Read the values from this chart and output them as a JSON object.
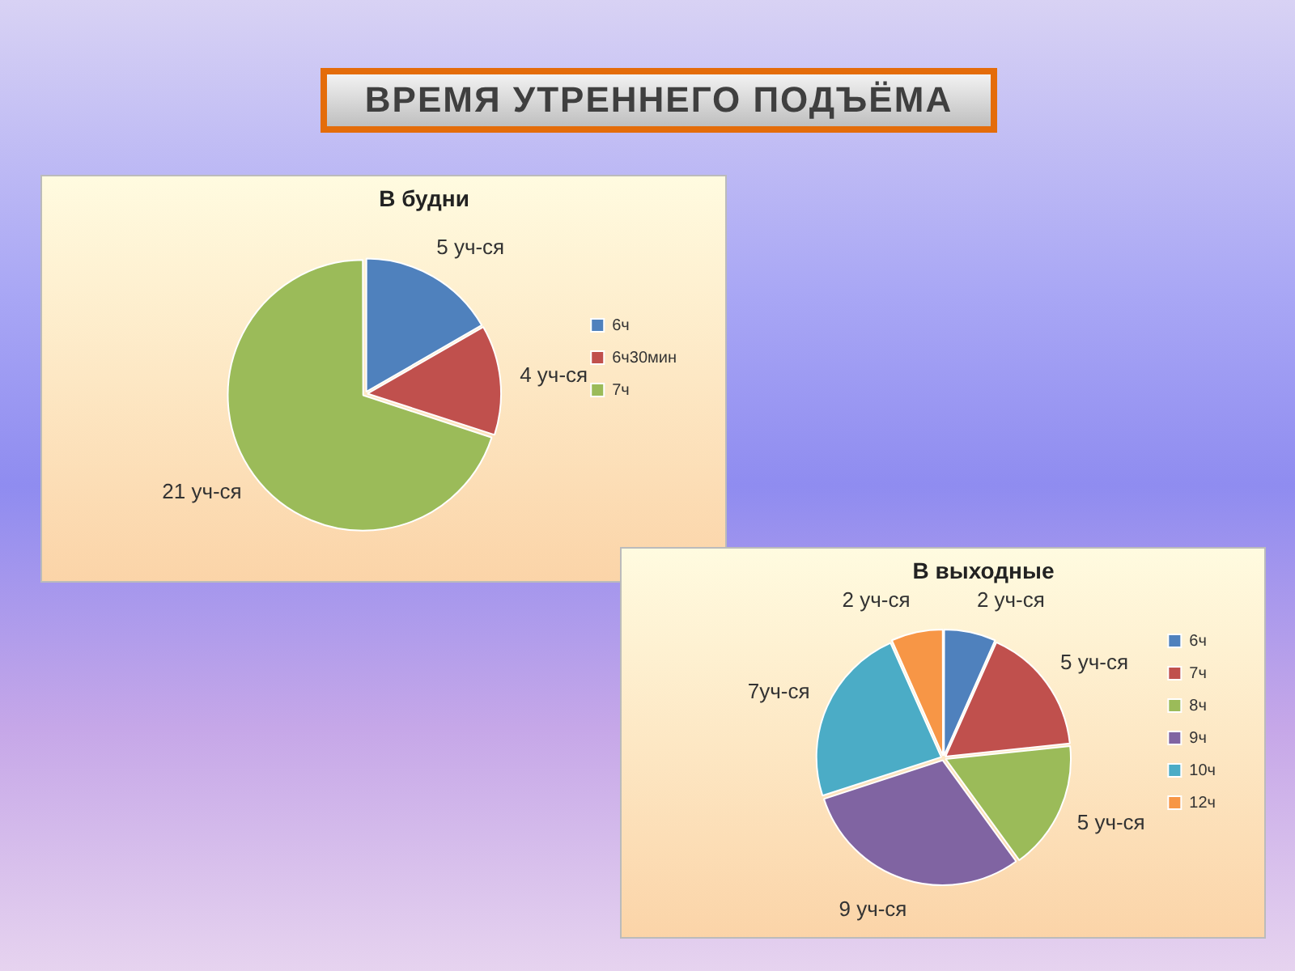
{
  "chart_data": [
    {
      "type": "pie",
      "title": "В будни",
      "categories": [
        "6ч",
        "6ч30мин",
        "7ч"
      ],
      "values": [
        5,
        4,
        21
      ],
      "colors": [
        "#4f81bd",
        "#c0504d",
        "#9bbb59"
      ],
      "value_labels": [
        "5 уч-ся",
        "4 уч-ся",
        "21 уч-ся"
      ],
      "legend": "right",
      "annotations": [
        "ВРЕМЯ УТРЕННЕГО ПОДЪЁМА"
      ]
    },
    {
      "type": "pie",
      "title": "В выходные",
      "categories": [
        "6ч",
        "7ч",
        "8ч",
        "9ч",
        "10ч",
        "12ч"
      ],
      "values": [
        2,
        5,
        5,
        9,
        7,
        2
      ],
      "colors": [
        "#4f81bd",
        "#c0504d",
        "#9bbb59",
        "#8064a2",
        "#4bacc6",
        "#f79646"
      ],
      "value_labels": [
        "2 уч-ся",
        "5 уч-ся",
        "5 уч-ся",
        "9 уч-ся",
        "7уч-ся",
        "2 уч-ся"
      ],
      "legend": "right"
    }
  ]
}
